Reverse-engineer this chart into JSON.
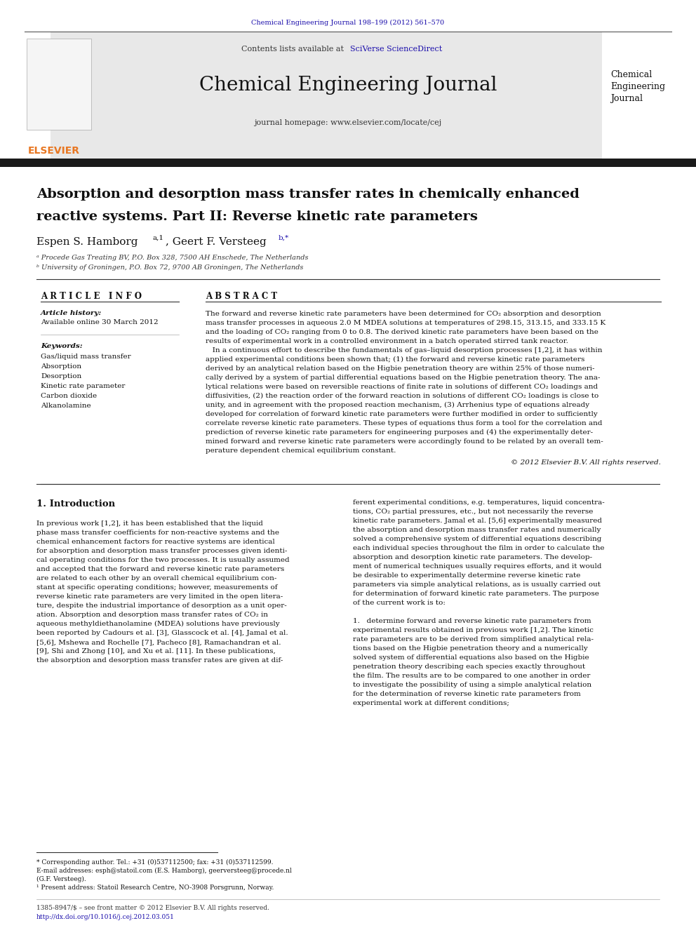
{
  "page_width": 9.92,
  "page_height": 13.23,
  "bg_color": "#ffffff",
  "top_citation": "Chemical Engineering Journal 198–199 (2012) 561–570",
  "top_citation_color": "#1a0dab",
  "journal_name": "Chemical Engineering Journal",
  "journal_homepage": "journal homepage: www.elsevier.com/locate/cej",
  "journal_right_text": "Chemical\nEngineering\nJournal",
  "sciverse_color": "#1a0dab",
  "elsevier_color": "#e87722",
  "header_bg": "#e8e8e8",
  "dark_bar_color": "#1a1a1a",
  "paper_title_line1": "Absorption and desorption mass transfer rates in chemically enhanced",
  "paper_title_line2": "reactive systems. Part II: Reverse kinetic rate parameters",
  "affil_a": "ᵃ Procede Gas Treating BV, P.O. Box 328, 7500 AH Enschede, The Netherlands",
  "affil_b": "ᵇ University of Groningen, P.O. Box 72, 9700 AB Groningen, The Netherlands",
  "article_info_header": "A R T I C L E   I N F O",
  "abstract_header": "A B S T R A C T",
  "article_history_label": "Article history:",
  "available_online": "Available online 30 March 2012",
  "keywords_label": "Keywords:",
  "keywords": [
    "Gas/liquid mass transfer",
    "Absorption",
    "Desorption",
    "Kinetic rate parameter",
    "Carbon dioxide",
    "Alkanolamine"
  ],
  "copyright_text": "© 2012 Elsevier B.V. All rights reserved.",
  "section1_title": "1. Introduction",
  "abstract_lines": [
    "The forward and reverse kinetic rate parameters have been determined for CO₂ absorption and desorption",
    "mass transfer processes in aqueous 2.0 M MDEA solutions at temperatures of 298.15, 313.15, and 333.15 K",
    "and the loading of CO₂ ranging from 0 to 0.8. The derived kinetic rate parameters have been based on the",
    "results of experimental work in a controlled environment in a batch operated stirred tank reactor.",
    "   In a continuous effort to describe the fundamentals of gas–liquid desorption processes [1,2], it has within",
    "applied experimental conditions been shown that; (1) the forward and reverse kinetic rate parameters",
    "derived by an analytical relation based on the Higbie penetration theory are within 25% of those numeri-",
    "cally derived by a system of partial differential equations based on the Higbie penetration theory. The ana-",
    "lytical relations were based on reversible reactions of finite rate in solutions of different CO₂ loadings and",
    "diffusivities, (2) the reaction order of the forward reaction in solutions of different CO₂ loadings is close to",
    "unity, and in agreement with the proposed reaction mechanism, (3) Arrhenius type of equations already",
    "developed for correlation of forward kinetic rate parameters were further modified in order to sufficiently",
    "correlate reverse kinetic rate parameters. These types of equations thus form a tool for the correlation and",
    "prediction of reverse kinetic rate parameters for engineering purposes and (4) the experimentally deter-",
    "mined forward and reverse kinetic rate parameters were accordingly found to be related by an overall tem-",
    "perature dependent chemical equilibrium constant."
  ],
  "intro_left_lines": [
    "In previous work [1,2], it has been established that the liquid",
    "phase mass transfer coefficients for non-reactive systems and the",
    "chemical enhancement factors for reactive systems are identical",
    "for absorption and desorption mass transfer processes given identi-",
    "cal operating conditions for the two processes. It is usually assumed",
    "and accepted that the forward and reverse kinetic rate parameters",
    "are related to each other by an overall chemical equilibrium con-",
    "stant at specific operating conditions; however, measurements of",
    "reverse kinetic rate parameters are very limited in the open litera-",
    "ture, despite the industrial importance of desorption as a unit oper-",
    "ation. Absorption and desorption mass transfer rates of CO₂ in",
    "aqueous methyldiethanolamine (MDEA) solutions have previously",
    "been reported by Cadours et al. [3], Glasscock et al. [4], Jamal et al.",
    "[5,6], Mshewa and Rochelle [7], Pacheco [8], Ramachandran et al.",
    "[9], Shi and Zhong [10], and Xu et al. [11]. In these publications,",
    "the absorption and desorption mass transfer rates are given at dif-"
  ],
  "intro_right_lines": [
    "ferent experimental conditions, e.g. temperatures, liquid concentra-",
    "tions, CO₂ partial pressures, etc., but not necessarily the reverse",
    "kinetic rate parameters. Jamal et al. [5,6] experimentally measured",
    "the absorption and desorption mass transfer rates and numerically",
    "solved a comprehensive system of differential equations describing",
    "each individual species throughout the film in order to calculate the",
    "absorption and desorption kinetic rate parameters. The develop-",
    "ment of numerical techniques usually requires efforts, and it would",
    "be desirable to experimentally determine reverse kinetic rate",
    "parameters via simple analytical relations, as is usually carried out",
    "for determination of forward kinetic rate parameters. The purpose",
    "of the current work is to:",
    "",
    "1.   determine forward and reverse kinetic rate parameters from",
    "experimental results obtained in previous work [1,2]. The kinetic",
    "rate parameters are to be derived from simplified analytical rela-",
    "tions based on the Higbie penetration theory and a numerically",
    "solved system of differential equations also based on the Higbie",
    "penetration theory describing each species exactly throughout",
    "the film. The results are to be compared to one another in order",
    "to investigate the possibility of using a simple analytical relation",
    "for the determination of reverse kinetic rate parameters from",
    "experimental work at different conditions;"
  ],
  "footer_issn": "1385-8947/$ – see front matter © 2012 Elsevier B.V. All rights reserved.",
  "footer_doi": "http://dx.doi.org/10.1016/j.cej.2012.03.051"
}
